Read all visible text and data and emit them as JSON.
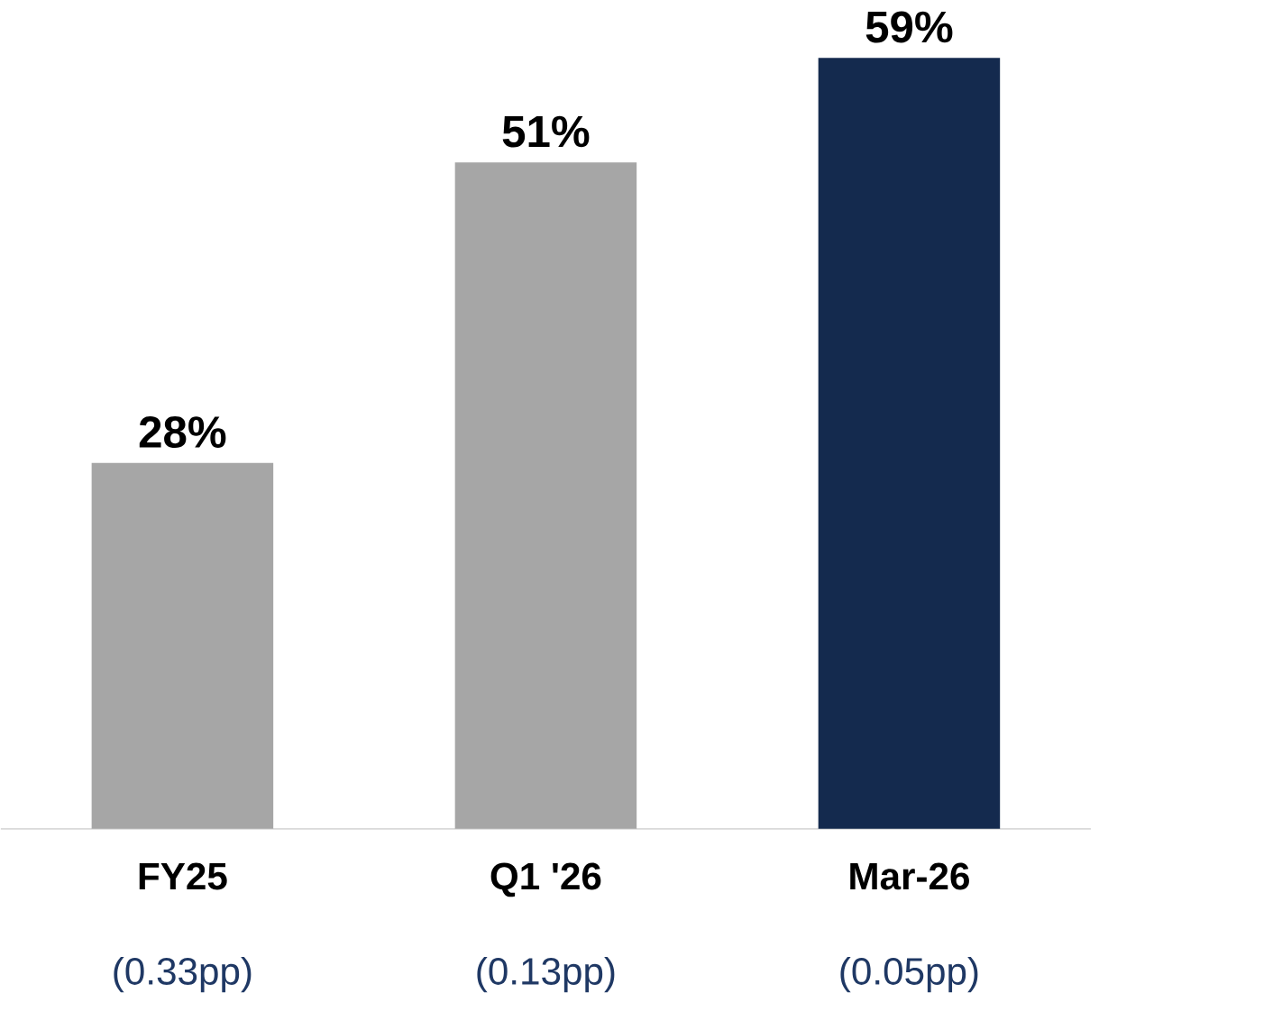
{
  "chart_data": {
    "type": "bar",
    "categories": [
      "FY25",
      "Q1 '26",
      "Mar-26"
    ],
    "values": [
      28,
      51,
      59
    ],
    "colors": [
      "#a6a6a6",
      "#a6a6a6",
      "#142a4e"
    ],
    "value_labels": [
      "28%",
      "51%",
      "59%"
    ],
    "annotations": [
      "(0.33pp)",
      "(0.13pp)",
      "(0.05pp)"
    ]
  }
}
